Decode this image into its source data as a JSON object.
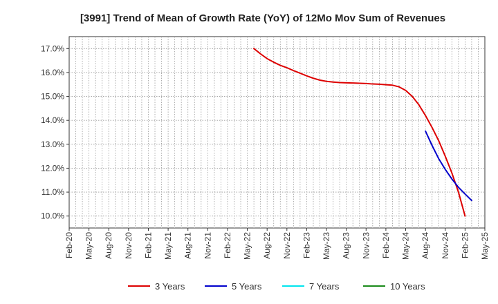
{
  "chart_data": {
    "type": "line",
    "title": "[3991]  Trend of Mean of Growth Rate (YoY) of 12Mo Mov Sum of Revenues",
    "xlabel": "",
    "ylabel": "",
    "ylim": [
      9.5,
      17.5
    ],
    "yticks": [
      10.0,
      11.0,
      12.0,
      13.0,
      14.0,
      15.0,
      16.0,
      17.0
    ],
    "ytick_labels": [
      "10.0%",
      "11.0%",
      "12.0%",
      "13.0%",
      "14.0%",
      "15.0%",
      "16.0%",
      "17.0%"
    ],
    "x_tick_labels": [
      "Feb-20",
      "May-20",
      "Aug-20",
      "Nov-20",
      "Feb-21",
      "May-21",
      "Aug-21",
      "Nov-21",
      "Feb-22",
      "May-22",
      "Aug-22",
      "Nov-22",
      "Feb-23",
      "May-23",
      "Aug-23",
      "Nov-23",
      "Feb-24",
      "May-24",
      "Aug-24",
      "Nov-24",
      "Feb-25",
      "May-25"
    ],
    "grid": true,
    "legend_position": "bottom",
    "series": [
      {
        "name": "3 Years",
        "color": "#dd0000",
        "points": [
          [
            28,
            17.0
          ],
          [
            29,
            16.78
          ],
          [
            30,
            16.58
          ],
          [
            31,
            16.43
          ],
          [
            32,
            16.3
          ],
          [
            33,
            16.2
          ],
          [
            34,
            16.08
          ],
          [
            35,
            15.97
          ],
          [
            36,
            15.86
          ],
          [
            37,
            15.76
          ],
          [
            38,
            15.68
          ],
          [
            39,
            15.63
          ],
          [
            40,
            15.6
          ],
          [
            41,
            15.58
          ],
          [
            42,
            15.57
          ],
          [
            43,
            15.56
          ],
          [
            44,
            15.55
          ],
          [
            45,
            15.54
          ],
          [
            46,
            15.52
          ],
          [
            47,
            15.51
          ],
          [
            48,
            15.49
          ],
          [
            49,
            15.47
          ],
          [
            50,
            15.4
          ],
          [
            51,
            15.25
          ],
          [
            52,
            15.0
          ],
          [
            53,
            14.65
          ],
          [
            54,
            14.2
          ],
          [
            55,
            13.7
          ],
          [
            56,
            13.15
          ],
          [
            57,
            12.5
          ],
          [
            58,
            11.8
          ],
          [
            59,
            11.0
          ],
          [
            60,
            10.0
          ]
        ]
      },
      {
        "name": "5 Years",
        "color": "#0000cc",
        "points": [
          [
            54,
            13.55
          ],
          [
            55,
            12.95
          ],
          [
            56,
            12.4
          ],
          [
            57,
            11.95
          ],
          [
            58,
            11.55
          ],
          [
            59,
            11.2
          ],
          [
            60,
            10.92
          ],
          [
            61,
            10.65
          ]
        ]
      },
      {
        "name": "7 Years",
        "color": "#00e5ee",
        "points": []
      },
      {
        "name": "10 Years",
        "color": "#1a8a1a",
        "points": []
      }
    ]
  }
}
